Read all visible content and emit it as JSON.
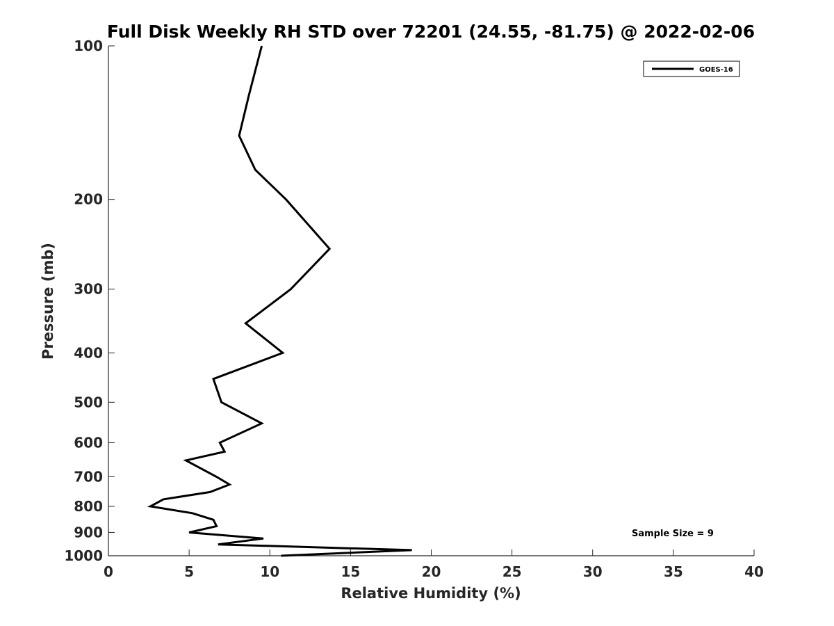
{
  "chart_data": {
    "type": "line",
    "title": "Full Disk Weekly RH STD over 72201 (24.55, -81.75) @ 2022-02-06",
    "xlabel": "Relative Humidity (%)",
    "ylabel": "Pressure (mb)",
    "xlim": [
      0,
      40
    ],
    "ylim": [
      100,
      1000
    ],
    "yscale": "log",
    "y_inverted": true,
    "grid": false,
    "xticks": [
      0,
      5,
      10,
      15,
      20,
      25,
      30,
      35,
      40
    ],
    "xtick_labels": [
      "0",
      "5",
      "10",
      "15",
      "20",
      "25",
      "30",
      "35",
      "40"
    ],
    "yticks": [
      100,
      200,
      300,
      400,
      500,
      600,
      700,
      800,
      900,
      1000
    ],
    "ytick_labels": [
      "100",
      "200",
      "300",
      "400",
      "500",
      "600",
      "700",
      "800",
      "900",
      "1000"
    ],
    "legend": {
      "position": "top-right",
      "entries": [
        "GOES-16"
      ]
    },
    "annotation": "Sample Size = 9",
    "series": [
      {
        "name": "GOES-16",
        "color": "#000000",
        "points": [
          {
            "rh": 9.5,
            "p": 100
          },
          {
            "rh": 8.7,
            "p": 125
          },
          {
            "rh": 8.1,
            "p": 150
          },
          {
            "rh": 9.1,
            "p": 175
          },
          {
            "rh": 11.0,
            "p": 200
          },
          {
            "rh": 13.7,
            "p": 250
          },
          {
            "rh": 11.3,
            "p": 300
          },
          {
            "rh": 8.5,
            "p": 350
          },
          {
            "rh": 10.8,
            "p": 400
          },
          {
            "rh": 6.5,
            "p": 450
          },
          {
            "rh": 7.0,
            "p": 500
          },
          {
            "rh": 9.5,
            "p": 550
          },
          {
            "rh": 6.9,
            "p": 600
          },
          {
            "rh": 7.2,
            "p": 625
          },
          {
            "rh": 4.8,
            "p": 650
          },
          {
            "rh": 6.7,
            "p": 700
          },
          {
            "rh": 7.5,
            "p": 725
          },
          {
            "rh": 6.3,
            "p": 750
          },
          {
            "rh": 3.4,
            "p": 775
          },
          {
            "rh": 2.6,
            "p": 800
          },
          {
            "rh": 5.2,
            "p": 825
          },
          {
            "rh": 6.5,
            "p": 850
          },
          {
            "rh": 6.7,
            "p": 875
          },
          {
            "rh": 5.0,
            "p": 900
          },
          {
            "rh": 9.6,
            "p": 925
          },
          {
            "rh": 6.8,
            "p": 950
          },
          {
            "rh": 18.8,
            "p": 975
          },
          {
            "rh": 10.7,
            "p": 1000
          }
        ]
      }
    ],
    "series_note": "Points listed along the traced profile line."
  }
}
